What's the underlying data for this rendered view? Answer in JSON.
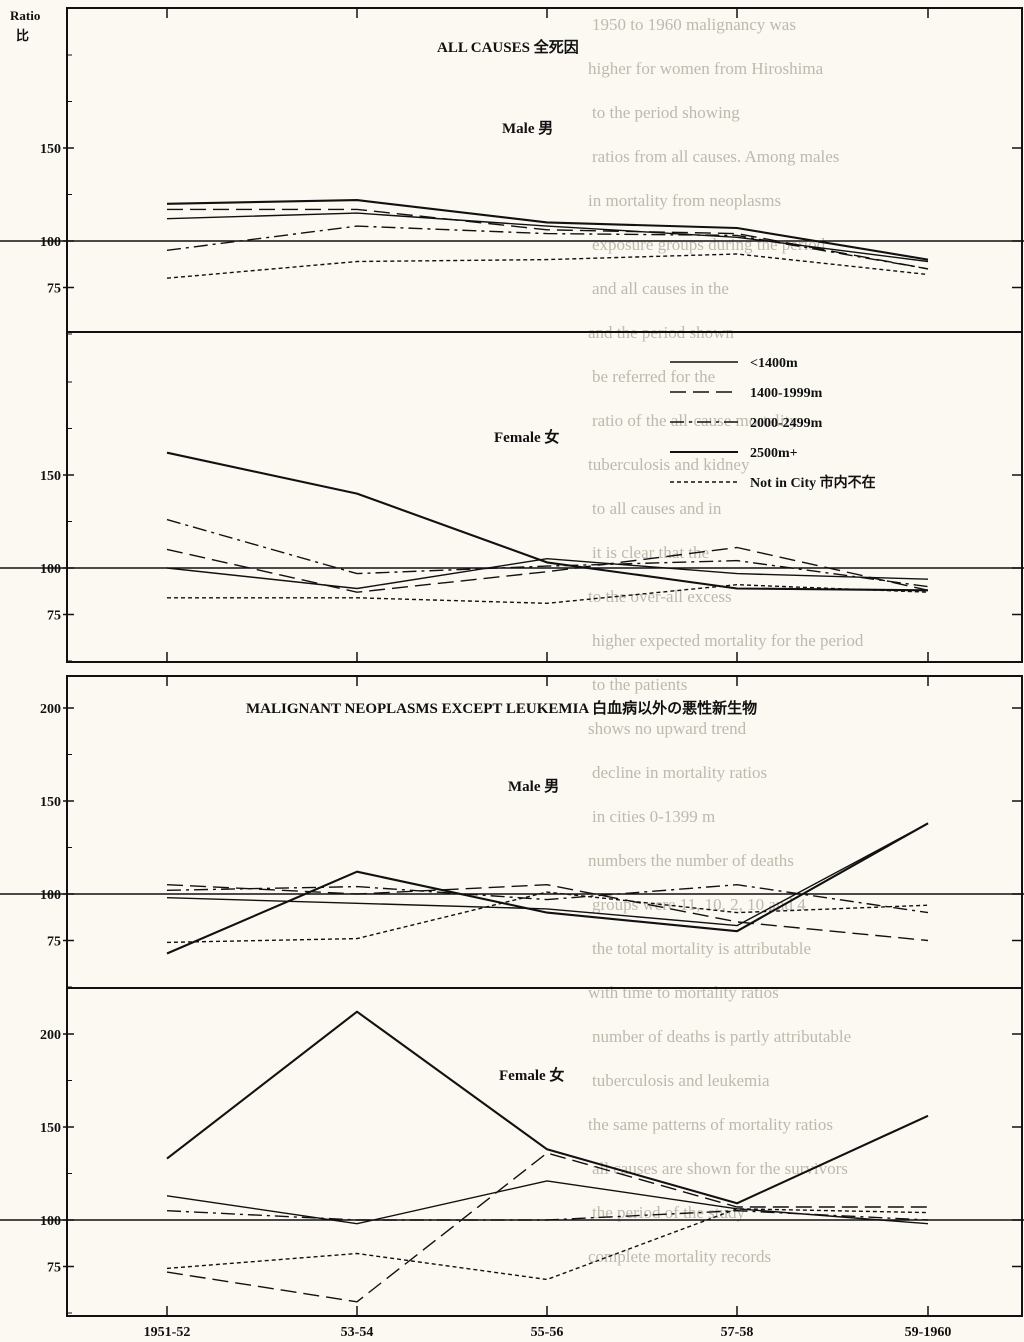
{
  "x_tick_labels": [
    "1951-52",
    "53-54",
    "55-56",
    "57-58",
    "59-1960"
  ],
  "y_axis_label": "Ratio",
  "y_axis_label_jp": "比",
  "legend": [
    {
      "label": "<1400m",
      "dash": ""
    },
    {
      "label": "1400-1999m",
      "dash": "16,7"
    },
    {
      "label": "2000-2499m",
      "dash": "14,5,3,5"
    },
    {
      "label": "2500m+",
      "dash": ""
    },
    {
      "label": "Not in City",
      "label_jp": "市内不在",
      "dash": "4,3"
    }
  ],
  "chart_data": [
    {
      "type": "line",
      "title": "ALL CAUSES 全死因",
      "subtitle": "Male 男",
      "x": [
        "1951-52",
        "53-54",
        "55-56",
        "57-58",
        "59-1960"
      ],
      "y_ticks": [
        75,
        100,
        150
      ],
      "ylim": [
        50,
        215
      ],
      "series": [
        {
          "name": "<1400m",
          "values": [
            112,
            115,
            108,
            102,
            89
          ]
        },
        {
          "name": "1400-1999m",
          "values": [
            117,
            117,
            106,
            104,
            85
          ]
        },
        {
          "name": "2000-2499m",
          "values": [
            95,
            108,
            104,
            103,
            85
          ]
        },
        {
          "name": "2500m+",
          "values": [
            120,
            122,
            110,
            107,
            90
          ]
        },
        {
          "name": "Not in City",
          "values": [
            80,
            89,
            90,
            93,
            82
          ]
        }
      ]
    },
    {
      "type": "line",
      "title": "",
      "subtitle": "Female 女",
      "x": [
        "1951-52",
        "53-54",
        "55-56",
        "57-58",
        "59-1960"
      ],
      "y_ticks": [
        75,
        100,
        150
      ],
      "ylim": [
        50,
        215
      ],
      "series": [
        {
          "name": "<1400m",
          "values": [
            100,
            89,
            105,
            97,
            94
          ]
        },
        {
          "name": "1400-1999m",
          "values": [
            110,
            87,
            98,
            111,
            88
          ]
        },
        {
          "name": "2000-2499m",
          "values": [
            126,
            97,
            101,
            104,
            90
          ]
        },
        {
          "name": "2500m+",
          "values": [
            162,
            140,
            103,
            89,
            88
          ]
        },
        {
          "name": "Not in City",
          "values": [
            84,
            84,
            81,
            91,
            87
          ]
        }
      ]
    },
    {
      "type": "line",
      "title": "MALIGNANT NEOPLASMS EXCEPT LEUKEMIA 白血病以外の悪性新生物",
      "subtitle": "Male 男",
      "x": [
        "1951-52",
        "53-54",
        "55-56",
        "57-58",
        "59-1960"
      ],
      "y_ticks": [
        75,
        100,
        150,
        200
      ],
      "ylim": [
        50,
        215
      ],
      "series": [
        {
          "name": "<1400m",
          "values": [
            98,
            95,
            92,
            83,
            138
          ]
        },
        {
          "name": "1400-1999m",
          "values": [
            105,
            100,
            105,
            85,
            75
          ]
        },
        {
          "name": "2000-2499m",
          "values": [
            102,
            104,
            97,
            105,
            90
          ]
        },
        {
          "name": "2500m+",
          "values": [
            68,
            112,
            90,
            80,
            138
          ]
        },
        {
          "name": "Not in City",
          "values": [
            74,
            76,
            101,
            90,
            94
          ]
        }
      ]
    },
    {
      "type": "line",
      "title": "",
      "subtitle": "Female 女",
      "x": [
        "1951-52",
        "53-54",
        "55-56",
        "57-58",
        "59-1960"
      ],
      "y_ticks": [
        75,
        100,
        150,
        200
      ],
      "ylim": [
        50,
        215
      ],
      "series": [
        {
          "name": "<1400m",
          "values": [
            113,
            98,
            121,
            106,
            98
          ]
        },
        {
          "name": "1400-1999m",
          "values": [
            72,
            56,
            136,
            107,
            107
          ]
        },
        {
          "name": "2000-2499m",
          "values": [
            105,
            100,
            100,
            105,
            100
          ]
        },
        {
          "name": "2500m+",
          "values": [
            133,
            212,
            138,
            109,
            156
          ]
        },
        {
          "name": "Not in City",
          "values": [
            74,
            82,
            68,
            106,
            104
          ]
        }
      ]
    }
  ],
  "background_text": [
    "1950 to 1960 malignancy was",
    "higher for women from Hiroshima",
    "to the period showing",
    "ratios from all causes. Among males",
    "in mortality from neoplasms",
    "exposure groups during the period",
    "and all causes in the",
    "and the period shown",
    "be referred for the",
    "ratio of the all-cause mortality",
    "tuberculosis and kidney",
    "to all causes and in",
    "it is clear that the",
    "to the over-all excess",
    "higher expected mortality for the period",
    "to the patients",
    "shows no upward trend",
    "decline in mortality ratios",
    "in cities 0-1399 m",
    "numbers the number of deaths",
    "groups were 11, 10, 2, 10 and 4",
    "the total mortality is attributable",
    "with time to mortality ratios",
    "number of deaths is partly attributable",
    "tuberculosis and leukemia",
    "the same patterns of mortality ratios",
    "all causes are shown for the survivors",
    "the period of the study",
    "complete mortality records"
  ]
}
